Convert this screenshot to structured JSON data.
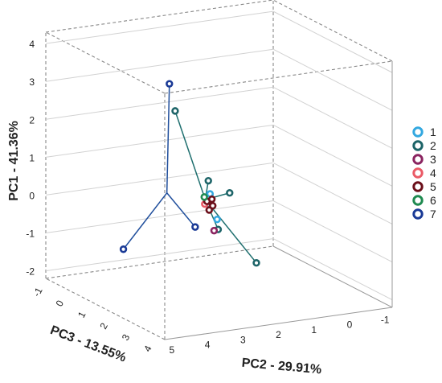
{
  "chart_data": {
    "type": "scatter",
    "projection": "3d-box",
    "xlabel": "PC2 - 29.91%",
    "ylabel": "PC1 - 41.36%",
    "zlabel": "PC3 - 13.55%",
    "x_ticks": [
      "5",
      "4",
      "3",
      "2",
      "1",
      "0",
      "-1"
    ],
    "y_ticks": [
      "-2",
      "-1",
      "0",
      "1",
      "2",
      "3",
      "4"
    ],
    "z_ticks": [
      "-1",
      "0",
      "1",
      "2",
      "3",
      "4"
    ],
    "xlim": [
      -1.2,
      5.2
    ],
    "ylim": [
      -2.2,
      4.3
    ],
    "zlim": [
      -1.2,
      4.2
    ],
    "grid": true,
    "legend_position": "right",
    "series": [
      {
        "name": "1",
        "color": "#33a8e0",
        "points": [
          [
            2.5,
            0.6,
            1.9
          ],
          [
            2.3,
            -0.1,
            1.9
          ],
          [
            2.4,
            0.4,
            1.8
          ]
        ]
      },
      {
        "name": "2",
        "color": "#1d6468",
        "points": [
          [
            2.8,
            2.5,
            0.8
          ],
          [
            1.7,
            0.4,
            1.5
          ],
          [
            0.7,
            -1.7,
            1.1
          ],
          [
            1.9,
            -0.6,
            1.3
          ],
          [
            2.3,
            0.8,
            1.5
          ]
        ]
      },
      {
        "name": "3",
        "color": "#8a2460",
        "points": [
          [
            2.2,
            -0.5,
            1.6
          ]
        ]
      },
      {
        "name": "4",
        "color": "#ea5a66",
        "points": [
          [
            2.4,
            0.2,
            1.5
          ]
        ]
      },
      {
        "name": "5",
        "color": "#6b0f1a",
        "points": [
          [
            2.5,
            0.4,
            1.9
          ],
          [
            2.4,
            0.3,
            1.6
          ],
          [
            2.3,
            0.2,
            1.7
          ],
          [
            2.2,
            0.3,
            1.5
          ],
          [
            2.4,
            0.1,
            1.7
          ]
        ]
      },
      {
        "name": "6",
        "color": "#1f8a50",
        "points": [
          [
            2.6,
            0.5,
            1.8
          ]
        ]
      },
      {
        "name": "7",
        "color": "#1a3a96",
        "points": [
          [
            2.9,
            3.2,
            0.7
          ],
          [
            3.6,
            0.2,
            3.0
          ],
          [
            5.0,
            -0.5,
            2.0
          ]
        ]
      }
    ],
    "dendrogram_links": [
      {
        "series": "7",
        "color": "#1f4e9c",
        "join": [
          3.9,
          0.9,
          2.2
        ],
        "members": [
          [
            2.9,
            3.2,
            0.7
          ],
          [
            3.6,
            0.2,
            3.0
          ],
          [
            5.0,
            -0.5,
            2.0
          ]
        ]
      },
      {
        "series": "2",
        "color": "#1d6e6e",
        "join": [
          2.2,
          0.2,
          1.2
        ],
        "members": [
          [
            2.8,
            2.5,
            0.8
          ],
          [
            1.7,
            0.4,
            1.5
          ],
          [
            0.7,
            -1.7,
            1.1
          ],
          [
            1.9,
            -0.6,
            1.3
          ],
          [
            2.3,
            0.8,
            1.5
          ]
        ]
      }
    ]
  }
}
